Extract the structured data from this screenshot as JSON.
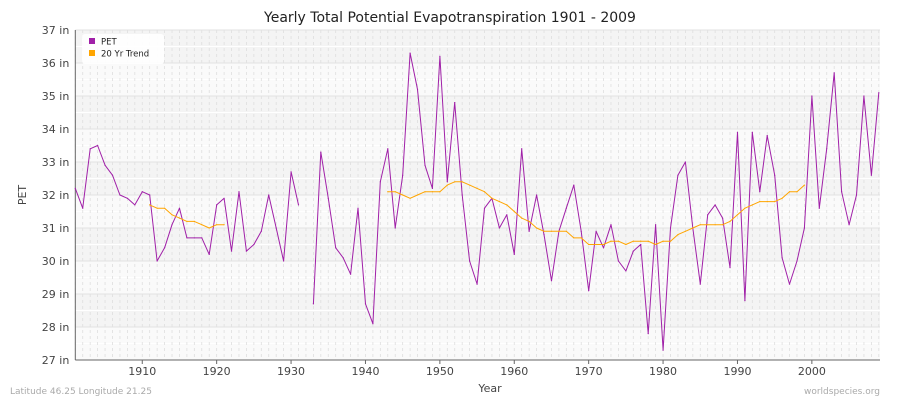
{
  "chart_data": {
    "type": "line",
    "title": "Yearly Total Potential Evapotranspiration 1901 - 2009",
    "xlabel": "Year",
    "ylabel": "PET",
    "xlim": [
      1901,
      2009
    ],
    "ylim": [
      27,
      37
    ],
    "y_unit": "in",
    "y_ticks": [
      "27 in",
      "28 in",
      "29 in",
      "30 in",
      "31 in",
      "32 in",
      "33 in",
      "34 in",
      "35 in",
      "36 in",
      "37 in"
    ],
    "x_ticks": [
      "1910",
      "1920",
      "1930",
      "1940",
      "1950",
      "1960",
      "1970",
      "1980",
      "1990",
      "2000"
    ],
    "grid": true,
    "legend_position": "top-left",
    "series": [
      {
        "name": "PET",
        "color": "#a020a8",
        "start_year": 1901,
        "values": [
          32.2,
          31.6,
          33.4,
          33.5,
          32.9,
          32.6,
          32.0,
          31.9,
          31.7,
          32.1,
          32.0,
          30.0,
          30.4,
          31.1,
          31.6,
          30.7,
          30.7,
          30.7,
          30.2,
          31.7,
          31.9,
          30.3,
          32.1,
          30.3,
          30.5,
          30.9,
          32.0,
          31.0,
          30.0,
          32.7,
          31.7,
          null,
          28.7,
          33.3,
          31.9,
          30.4,
          30.1,
          29.6,
          31.6,
          28.7,
          28.1,
          32.4,
          33.4,
          31.0,
          32.6,
          36.3,
          35.2,
          32.9,
          32.2,
          36.2,
          32.4,
          34.8,
          32.0,
          30.0,
          29.3,
          31.6,
          31.9,
          31.0,
          31.4,
          30.2,
          33.4,
          30.9,
          32.0,
          30.8,
          29.4,
          30.9,
          31.6,
          32.3,
          30.9,
          29.1,
          30.9,
          30.4,
          31.1,
          30.0,
          29.7,
          30.3,
          30.5,
          27.8,
          31.1,
          27.3,
          31.0,
          32.6,
          33.0,
          31.0,
          29.3,
          31.4,
          31.7,
          31.3,
          29.8,
          33.9,
          28.8,
          33.9,
          32.1,
          33.8,
          32.6,
          30.1,
          29.3,
          30.0,
          31.0,
          35.0,
          31.6,
          33.4,
          35.7,
          32.1,
          31.1,
          32.0,
          35.0,
          32.6,
          35.1
        ]
      },
      {
        "name": "20 Yr Trend",
        "color": "#ffa500",
        "start_year": 1911,
        "values": [
          31.7,
          31.6,
          31.6,
          31.4,
          31.3,
          31.2,
          31.2,
          31.1,
          31.0,
          31.1,
          31.1,
          null,
          null,
          null,
          null,
          null,
          null,
          null,
          null,
          null,
          null,
          null,
          null,
          null,
          null,
          null,
          null,
          null,
          null,
          null,
          null,
          null,
          32.1,
          32.1,
          32.0,
          31.9,
          32.0,
          32.1,
          32.1,
          32.1,
          32.3,
          32.4,
          32.4,
          32.3,
          32.2,
          32.1,
          31.9,
          31.8,
          31.7,
          31.5,
          31.3,
          31.2,
          31.0,
          30.9,
          30.9,
          30.9,
          30.9,
          30.7,
          30.7,
          30.5,
          30.5,
          30.5,
          30.6,
          30.6,
          30.5,
          30.6,
          30.6,
          30.6,
          30.5,
          30.6,
          30.6,
          30.8,
          30.9,
          31.0,
          31.1,
          31.1,
          31.1,
          31.1,
          31.2,
          31.4,
          31.6,
          31.7,
          31.8,
          31.8,
          31.8,
          31.9,
          32.1,
          32.1,
          32.3
        ]
      }
    ]
  },
  "footer": {
    "location": "Latitude 46.25 Longitude 21.25",
    "source": "worldspecies.org"
  }
}
